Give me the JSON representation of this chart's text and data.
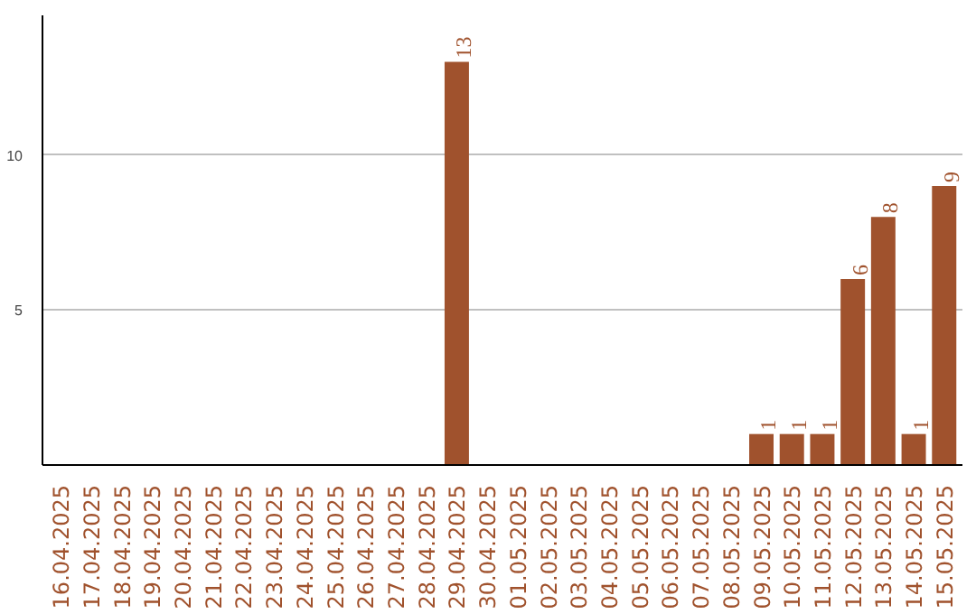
{
  "chart_data": {
    "type": "bar",
    "categories": [
      "16.04.2025",
      "17.04.2025",
      "18.04.2025",
      "19.04.2025",
      "20.04.2025",
      "21.04.2025",
      "22.04.2025",
      "23.04.2025",
      "24.04.2025",
      "25.04.2025",
      "26.04.2025",
      "27.04.2025",
      "28.04.2025",
      "29.04.2025",
      "30.04.2025",
      "01.05.2025",
      "02.05.2025",
      "03.05.2025",
      "04.05.2025",
      "05.05.2025",
      "06.05.2025",
      "07.05.2025",
      "08.05.2025",
      "09.05.2025",
      "10.05.2025",
      "11.05.2025",
      "12.05.2025",
      "13.05.2025",
      "14.05.2025",
      "15.05.2025"
    ],
    "values": [
      0,
      0,
      0,
      0,
      0,
      0,
      0,
      0,
      0,
      0,
      0,
      0,
      0,
      13,
      0,
      0,
      0,
      0,
      0,
      0,
      0,
      0,
      0,
      1,
      1,
      1,
      6,
      8,
      1,
      9
    ],
    "value_labels": [
      null,
      null,
      null,
      null,
      null,
      null,
      null,
      null,
      null,
      null,
      null,
      null,
      null,
      "13",
      null,
      null,
      null,
      null,
      null,
      null,
      null,
      null,
      null,
      "1",
      "1",
      "1",
      "6",
      "8",
      "1",
      "9"
    ],
    "color": "#a0522d",
    "ylim": [
      0,
      14.5
    ],
    "yticks": [
      5,
      10
    ],
    "grid": "y"
  }
}
